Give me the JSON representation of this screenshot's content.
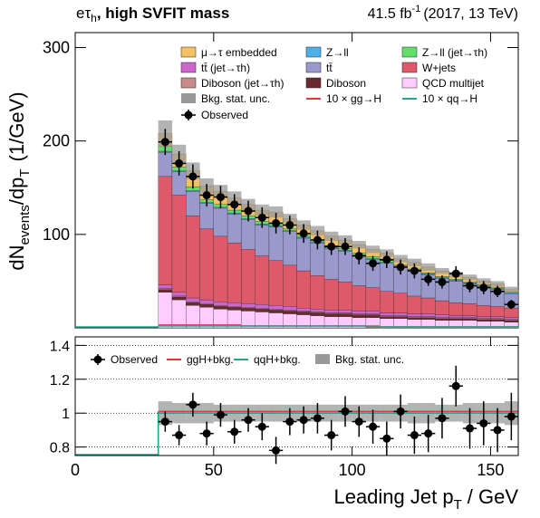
{
  "chart_data": [
    {
      "type": "histogram",
      "title": [
        "eτ",
        "h",
        ", high SVFIT mass"
      ],
      "lumi": [
        "41.5 fb",
        "-1",
        "(2017, 13 TeV)"
      ],
      "ylabel": [
        "dN",
        "events",
        "/dp",
        "T",
        "(1/GeV)"
      ],
      "bins": [
        30,
        35,
        40,
        45,
        50,
        55,
        60,
        65,
        70,
        75,
        80,
        85,
        90,
        95,
        100,
        105,
        110,
        115,
        120,
        125,
        130,
        135,
        140,
        145,
        150,
        155,
        160
      ],
      "xlim": [
        0,
        160
      ],
      "ylim": [
        0,
        316
      ],
      "yticks": [
        100,
        200,
        300
      ],
      "series": [
        {
          "name": "QCD multijet",
          "color": "#ffccff",
          "values": [
            38,
            30,
            24,
            22,
            20,
            19,
            18,
            17,
            16,
            15,
            14,
            13,
            12,
            12,
            11,
            11,
            10,
            10,
            9,
            9,
            8,
            8,
            8,
            7,
            7,
            6
          ]
        },
        {
          "name": "Diboson",
          "color": "#6b2a2e",
          "values": [
            3,
            3,
            3,
            3,
            3,
            3,
            3,
            3,
            3,
            3,
            3,
            3,
            3,
            3,
            3,
            3,
            2,
            2,
            2,
            2,
            2,
            2,
            2,
            2,
            2,
            2
          ]
        },
        {
          "name": "Diboson (jet→τh)",
          "color": "#c98a8a",
          "values": [
            1,
            1,
            1,
            1,
            1,
            1,
            1,
            1,
            1,
            1,
            1,
            1,
            1,
            1,
            1,
            1,
            1,
            1,
            1,
            1,
            1,
            1,
            1,
            1,
            1,
            1
          ]
        },
        {
          "name": "tt̄ (jet→τh)",
          "color": "#cc66cc",
          "values": [
            4,
            4,
            4,
            4,
            4,
            4,
            4,
            4,
            4,
            4,
            3,
            3,
            3,
            3,
            3,
            3,
            3,
            3,
            3,
            3,
            3,
            2,
            2,
            2,
            2,
            2
          ]
        },
        {
          "name": "W+jets",
          "color": "#de5a6a",
          "values": [
            116,
            104,
            88,
            76,
            70,
            64,
            58,
            52,
            48,
            44,
            40,
            36,
            33,
            30,
            27,
            25,
            23,
            21,
            19,
            17,
            15,
            14,
            13,
            12,
            11,
            10
          ]
        },
        {
          "name": "tt̄",
          "color": "#9999cc",
          "values": [
            26,
            25,
            26,
            27,
            30,
            31,
            32,
            33,
            36,
            36,
            35,
            35,
            33,
            33,
            32,
            30,
            30,
            28,
            27,
            25,
            24,
            23,
            21,
            20,
            18,
            15
          ]
        },
        {
          "name": "Z→ll",
          "color": "#4fb0e6",
          "values": [
            1,
            1,
            1,
            1,
            1,
            1,
            1,
            1,
            1,
            1,
            1,
            1,
            1,
            1,
            1,
            1,
            1,
            1,
            1,
            1,
            1,
            1,
            1,
            1,
            1,
            1
          ]
        },
        {
          "name": "Z→ll (jet→τh)",
          "color": "#64de6a",
          "values": [
            5,
            4,
            4,
            3,
            3,
            3,
            3,
            3,
            3,
            2,
            2,
            2,
            2,
            2,
            2,
            2,
            2,
            1,
            1,
            1,
            1,
            1,
            1,
            1,
            1,
            1
          ]
        },
        {
          "name": "μ→τ embedded",
          "color": "#f4c164",
          "values": [
            14,
            14,
            17,
            15,
            14,
            13,
            12,
            12,
            12,
            11,
            11,
            10,
            10,
            9,
            9,
            8,
            8,
            7,
            7,
            6,
            6,
            5,
            5,
            4,
            4,
            3
          ]
        }
      ],
      "stat_unc": {
        "name": "Bkg. stat. unc.",
        "color": "#999999",
        "values": [
          14,
          10,
          9,
          8,
          7,
          7,
          6,
          6,
          6,
          5,
          5,
          5,
          5,
          5,
          4,
          4,
          4,
          4,
          4,
          4,
          3,
          3,
          3,
          3,
          3,
          3
        ]
      },
      "signals": [
        {
          "name": "10 × gg→H",
          "color": "#e8363c",
          "values": [
            3,
            3,
            3,
            3,
            3,
            3,
            2,
            2,
            2,
            2,
            2,
            2,
            2,
            2,
            2,
            1,
            1,
            1,
            1,
            1,
            1,
            1,
            1,
            1,
            1,
            1
          ]
        },
        {
          "name": "10 × qq→H",
          "color": "#1fa88c",
          "values": [
            2,
            2,
            2,
            2,
            2,
            2,
            2,
            2,
            2,
            2,
            2,
            2,
            2,
            2,
            2,
            2,
            1,
            1,
            1,
            1,
            1,
            1,
            1,
            1,
            1,
            1
          ]
        }
      ],
      "observed": {
        "name": "Observed",
        "values": [
          199,
          176,
          162,
          142,
          140,
          132,
          125,
          118,
          112,
          110,
          101,
          94,
          87,
          87,
          77,
          69,
          73,
          65,
          61,
          52,
          49,
          58,
          45,
          43,
          39,
          25
        ],
        "errors": [
          14,
          13,
          13,
          12,
          12,
          11,
          11,
          11,
          11,
          10,
          10,
          10,
          9,
          9,
          9,
          8,
          9,
          8,
          8,
          7,
          7,
          8,
          7,
          7,
          6,
          5
        ]
      }
    },
    {
      "type": "ratio",
      "xlabel": [
        "Leading Jet p",
        "T",
        "/ GeV"
      ],
      "bins": [
        30,
        35,
        40,
        45,
        50,
        55,
        60,
        65,
        70,
        75,
        80,
        85,
        90,
        95,
        100,
        105,
        110,
        115,
        120,
        125,
        130,
        135,
        140,
        145,
        150,
        155,
        160
      ],
      "xlim": [
        0,
        160
      ],
      "xticks": [
        0,
        50,
        100,
        150
      ],
      "ylim": [
        0.75,
        1.45
      ],
      "yticks": [
        0.8,
        1,
        1.2,
        1.4
      ],
      "grid": true,
      "observed": {
        "name": "Observed",
        "values": [
          0.95,
          0.87,
          1.05,
          0.88,
          0.99,
          0.89,
          0.96,
          0.92,
          0.78,
          0.95,
          0.96,
          0.97,
          0.87,
          1.01,
          0.95,
          0.92,
          0.85,
          1.01,
          0.87,
          0.88,
          0.97,
          1.16,
          0.91,
          0.94,
          0.9,
          0.98
        ],
        "errors": [
          0.06,
          0.06,
          0.07,
          0.07,
          0.07,
          0.07,
          0.07,
          0.08,
          0.08,
          0.08,
          0.08,
          0.09,
          0.09,
          0.09,
          0.09,
          0.1,
          0.1,
          0.1,
          0.11,
          0.11,
          0.12,
          0.12,
          0.12,
          0.13,
          0.13,
          0.14
        ]
      },
      "lines": [
        {
          "name": "ggH+bkg.",
          "color": "#e8363c",
          "values": [
            1.01,
            1.01,
            1.01,
            1.01,
            1.01,
            1.01,
            1.01,
            1.01,
            1.01,
            1.01,
            1.01,
            1.01,
            1.01,
            1.01,
            1.01,
            1.01,
            1.01,
            1.01,
            1.01,
            1.01,
            1.01,
            1.01,
            1.01,
            1.01,
            1.01,
            1.01
          ]
        },
        {
          "name": "qqH+bkg.",
          "color": "#1fa88c",
          "values": [
            1,
            1,
            1,
            1,
            1,
            1,
            1,
            1,
            1,
            1,
            1,
            1,
            1,
            1,
            1,
            1,
            1,
            1,
            1,
            1,
            1,
            1,
            1,
            1,
            1,
            1
          ]
        }
      ],
      "band": {
        "name": "Bkg. stat. unc.",
        "color": "#999999",
        "values": [
          0.07,
          0.06,
          0.06,
          0.06,
          0.05,
          0.05,
          0.05,
          0.05,
          0.05,
          0.05,
          0.05,
          0.05,
          0.05,
          0.05,
          0.05,
          0.05,
          0.05,
          0.05,
          0.06,
          0.06,
          0.05,
          0.05,
          0.06,
          0.06,
          0.06,
          0.07
        ]
      }
    }
  ]
}
